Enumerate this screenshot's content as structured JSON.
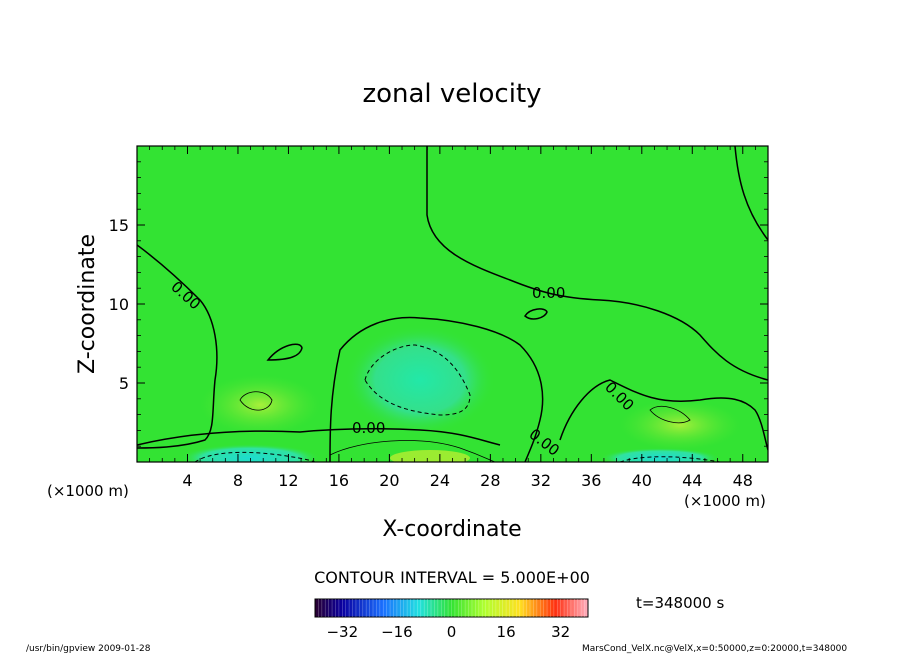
{
  "chart_data": {
    "type": "heatmap",
    "title": "zonal velocity",
    "xlabel": "X-coordinate",
    "ylabel": "Z-coordinate",
    "x_unit_left": "(×1000 m)",
    "x_unit_right": "(×1000 m)",
    "xlim": [
      0,
      50
    ],
    "ylim": [
      0,
      20
    ],
    "x_ticks": [
      "4",
      "8",
      "12",
      "16",
      "20",
      "24",
      "28",
      "32",
      "36",
      "40",
      "44",
      "48"
    ],
    "y_ticks": [
      "5",
      "10",
      "15"
    ],
    "contour_labels": [
      "0.00",
      "0.00",
      "0.00",
      "0.00",
      "0.00"
    ],
    "contour_interval_text": "CONTOUR INTERVAL = 5.000E+00",
    "time_text": "t=348000 s",
    "colorbar": {
      "range": [
        -40,
        40
      ],
      "ticks": [
        "-32",
        "-16",
        "0",
        "16",
        "32"
      ]
    },
    "footer_left": "/usr/bin/gpview  2009-01-28",
    "footer_right": "MarsCond_VelX.nc@VelX,x=0:50000,z=0:20000,t=348000",
    "colors": {
      "background_field": "#33e333",
      "near_zero": "#4ae24a"
    }
  }
}
